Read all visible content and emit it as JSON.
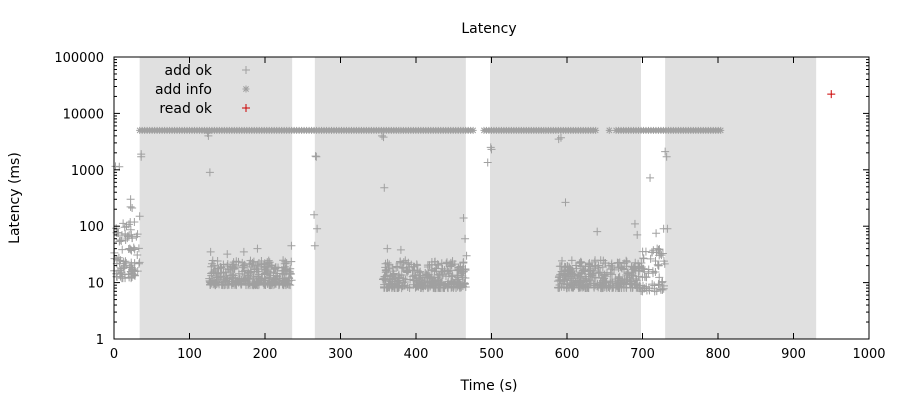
{
  "chart_data": {
    "type": "scatter",
    "title": "Latency",
    "xlabel": "Time (s)",
    "ylabel": "Latency (ms)",
    "xlim": [
      0,
      1000
    ],
    "ylim": [
      1,
      100000
    ],
    "yscale": "log",
    "x_ticks": [
      "0",
      "100",
      "200",
      "300",
      "400",
      "500",
      "600",
      "700",
      "800",
      "900",
      "1000"
    ],
    "y_ticks": [
      "1",
      "10",
      "100",
      "1000",
      "10000",
      "100000"
    ],
    "grid": false,
    "legend_position": "top-left",
    "shaded_intervals": [
      [
        34,
        236
      ],
      [
        266,
        466
      ],
      [
        498,
        698
      ],
      [
        730,
        930
      ]
    ],
    "shade_color": "#e0e0e0",
    "series": [
      {
        "name": "add ok",
        "marker": "+",
        "color": "#a0a0a0",
        "clusters": [
          {
            "x_range": [
              0,
              34
            ],
            "y_range": [
              12,
              120
            ],
            "count": 90
          },
          {
            "x_range": [
              126,
              236
            ],
            "y_range": [
              9,
              25
            ],
            "count": 320
          },
          {
            "x_range": [
              356,
              466
            ],
            "y_range": [
              8,
              25
            ],
            "count": 320
          },
          {
            "x_range": [
              588,
              698
            ],
            "y_range": [
              8,
              25
            ],
            "count": 320
          },
          {
            "x_range": [
              698,
              730
            ],
            "y_range": [
              7,
              40
            ],
            "count": 60
          }
        ],
        "points": [
          {
            "x": 2,
            "y": 1150
          },
          {
            "x": 7,
            "y": 1130
          },
          {
            "x": 22,
            "y": 300
          },
          {
            "x": 22,
            "y": 220
          },
          {
            "x": 24,
            "y": 210
          },
          {
            "x": 36,
            "y": 1900
          },
          {
            "x": 36,
            "y": 1700
          },
          {
            "x": 34,
            "y": 150
          },
          {
            "x": 127,
            "y": 900
          },
          {
            "x": 125,
            "y": 4000
          },
          {
            "x": 124,
            "y": 4500
          },
          {
            "x": 128,
            "y": 35
          },
          {
            "x": 150,
            "y": 32
          },
          {
            "x": 172,
            "y": 35
          },
          {
            "x": 190,
            "y": 40
          },
          {
            "x": 235,
            "y": 45
          },
          {
            "x": 265,
            "y": 160
          },
          {
            "x": 266,
            "y": 45
          },
          {
            "x": 267,
            "y": 1750
          },
          {
            "x": 268,
            "y": 1700
          },
          {
            "x": 269,
            "y": 90
          },
          {
            "x": 355,
            "y": 4000
          },
          {
            "x": 357,
            "y": 3800
          },
          {
            "x": 358,
            "y": 480
          },
          {
            "x": 362,
            "y": 40
          },
          {
            "x": 380,
            "y": 38
          },
          {
            "x": 463,
            "y": 140
          },
          {
            "x": 465,
            "y": 60
          },
          {
            "x": 467,
            "y": 30
          },
          {
            "x": 495,
            "y": 1350
          },
          {
            "x": 499,
            "y": 2500
          },
          {
            "x": 500,
            "y": 2300
          },
          {
            "x": 589,
            "y": 3500
          },
          {
            "x": 592,
            "y": 3700
          },
          {
            "x": 598,
            "y": 265
          },
          {
            "x": 640,
            "y": 80
          },
          {
            "x": 690,
            "y": 110
          },
          {
            "x": 693,
            "y": 70
          },
          {
            "x": 710,
            "y": 720
          },
          {
            "x": 718,
            "y": 75
          },
          {
            "x": 728,
            "y": 90
          },
          {
            "x": 730,
            "y": 2100
          },
          {
            "x": 732,
            "y": 1700
          },
          {
            "x": 733,
            "y": 90
          }
        ]
      },
      {
        "name": "add info",
        "marker": "*",
        "color": "#a0a0a0",
        "y": 5000,
        "x_ranges": [
          [
            34,
            380
          ],
          [
            380,
            478
          ],
          [
            490,
            572
          ],
          [
            572,
            640
          ],
          [
            656,
            658
          ],
          [
            665,
            805
          ]
        ]
      },
      {
        "name": "read ok",
        "marker": "+",
        "color": "#cc0000",
        "points": [
          {
            "x": 950,
            "y": 22000
          }
        ]
      }
    ]
  }
}
